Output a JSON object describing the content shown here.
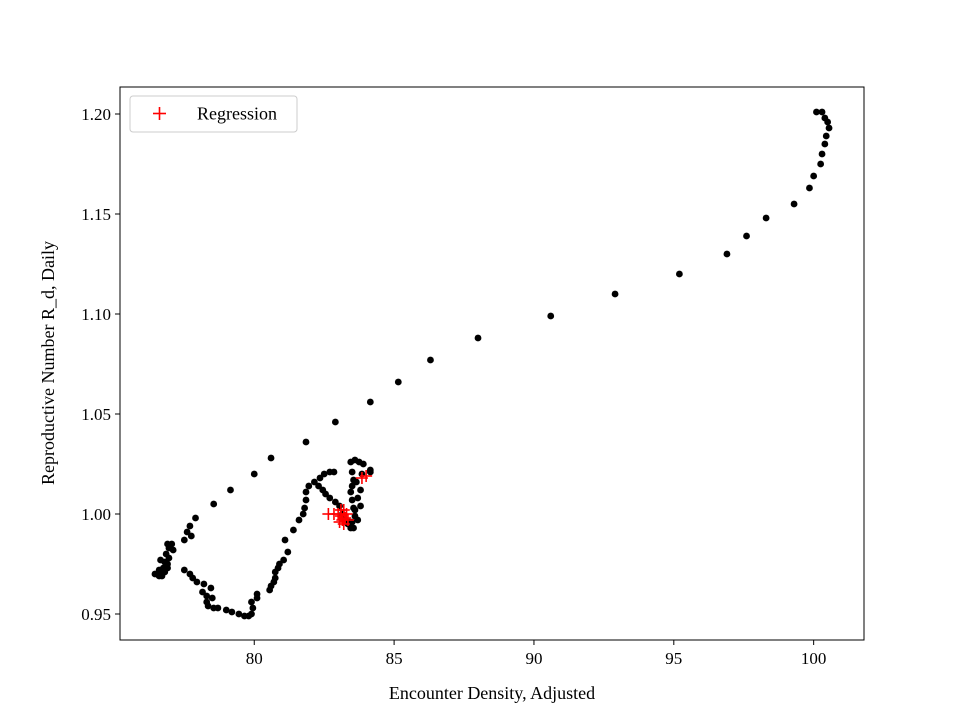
{
  "chart_data": {
    "type": "scatter",
    "title": "",
    "xlabel": "Encounter Density, Adjusted",
    "ylabel": "Reproductive Number R_d, Daily",
    "xlim": [
      75.2,
      101.8
    ],
    "ylim": [
      0.937,
      1.2135
    ],
    "xticks": [
      80,
      85,
      90,
      95,
      100
    ],
    "xtick_labels": [
      "80",
      "85",
      "90",
      "95",
      "100"
    ],
    "yticks": [
      0.95,
      1.0,
      1.05,
      1.1,
      1.15,
      1.2
    ],
    "ytick_labels": [
      "0.95",
      "1.00",
      "1.05",
      "1.10",
      "1.15",
      "1.20"
    ],
    "grid": false,
    "legend": {
      "position": "top-left",
      "entries": [
        "Regression"
      ]
    },
    "series": [
      {
        "marker": "circle",
        "color": "#000000",
        "points": [
          [
            100.1,
            1.201
          ],
          [
            100.3,
            1.201
          ],
          [
            100.4,
            1.198
          ],
          [
            100.5,
            1.196
          ],
          [
            100.55,
            1.193
          ],
          [
            100.45,
            1.189
          ],
          [
            100.4,
            1.185
          ],
          [
            100.3,
            1.18
          ],
          [
            100.25,
            1.175
          ],
          [
            100.0,
            1.169
          ],
          [
            99.85,
            1.163
          ],
          [
            99.3,
            1.155
          ],
          [
            98.3,
            1.148
          ],
          [
            97.6,
            1.139
          ],
          [
            96.9,
            1.13
          ],
          [
            95.2,
            1.12
          ],
          [
            92.9,
            1.11
          ],
          [
            90.6,
            1.099
          ],
          [
            88.0,
            1.088
          ],
          [
            86.3,
            1.077
          ],
          [
            85.15,
            1.066
          ],
          [
            84.15,
            1.056
          ],
          [
            82.9,
            1.046
          ],
          [
            81.85,
            1.036
          ],
          [
            80.6,
            1.028
          ],
          [
            80.0,
            1.02
          ],
          [
            79.15,
            1.012
          ],
          [
            78.55,
            1.005
          ],
          [
            77.9,
            0.998
          ],
          [
            77.7,
            0.994
          ],
          [
            77.6,
            0.991
          ],
          [
            77.75,
            0.989
          ],
          [
            77.5,
            0.987
          ],
          [
            77.05,
            0.985
          ],
          [
            76.9,
            0.985
          ],
          [
            76.95,
            0.983
          ],
          [
            77.1,
            0.982
          ],
          [
            76.85,
            0.98
          ],
          [
            76.95,
            0.978
          ],
          [
            76.8,
            0.976
          ],
          [
            76.65,
            0.977
          ],
          [
            76.9,
            0.975
          ],
          [
            76.75,
            0.973
          ],
          [
            76.6,
            0.972
          ],
          [
            76.45,
            0.97
          ],
          [
            76.7,
            0.97
          ],
          [
            76.8,
            0.971
          ],
          [
            76.9,
            0.973
          ],
          [
            76.7,
            0.969
          ],
          [
            76.6,
            0.969
          ],
          [
            77.5,
            0.972
          ],
          [
            77.7,
            0.97
          ],
          [
            77.8,
            0.968
          ],
          [
            77.95,
            0.966
          ],
          [
            78.2,
            0.965
          ],
          [
            78.45,
            0.963
          ],
          [
            78.15,
            0.961
          ],
          [
            78.3,
            0.959
          ],
          [
            78.5,
            0.958
          ],
          [
            78.3,
            0.956
          ],
          [
            78.35,
            0.954
          ],
          [
            78.55,
            0.953
          ],
          [
            78.7,
            0.953
          ],
          [
            79.0,
            0.952
          ],
          [
            79.2,
            0.951
          ],
          [
            79.45,
            0.95
          ],
          [
            79.65,
            0.949
          ],
          [
            79.8,
            0.949
          ],
          [
            79.9,
            0.95
          ],
          [
            79.95,
            0.953
          ],
          [
            79.9,
            0.956
          ],
          [
            80.1,
            0.958
          ],
          [
            80.1,
            0.96
          ],
          [
            80.55,
            0.962
          ],
          [
            80.6,
            0.964
          ],
          [
            80.7,
            0.966
          ],
          [
            80.75,
            0.968
          ],
          [
            80.75,
            0.971
          ],
          [
            80.85,
            0.973
          ],
          [
            80.9,
            0.975
          ],
          [
            81.05,
            0.977
          ],
          [
            81.2,
            0.981
          ],
          [
            81.1,
            0.987
          ],
          [
            81.4,
            0.992
          ],
          [
            81.6,
            0.997
          ],
          [
            81.75,
            1.0
          ],
          [
            81.8,
            1.003
          ],
          [
            81.85,
            1.007
          ],
          [
            81.85,
            1.011
          ],
          [
            81.95,
            1.014
          ],
          [
            82.15,
            1.016
          ],
          [
            82.3,
            1.014
          ],
          [
            82.45,
            1.012
          ],
          [
            82.55,
            1.01
          ],
          [
            82.7,
            1.008
          ],
          [
            82.9,
            1.006
          ],
          [
            82.35,
            1.018
          ],
          [
            82.5,
            1.02
          ],
          [
            82.7,
            1.021
          ],
          [
            82.85,
            1.021
          ],
          [
            83.05,
            1.004
          ],
          [
            83.15,
            1.0
          ],
          [
            83.25,
            0.997
          ],
          [
            83.35,
            0.995
          ],
          [
            83.45,
            0.993
          ],
          [
            83.55,
            0.993
          ],
          [
            83.5,
            0.996
          ],
          [
            83.6,
            0.999
          ],
          [
            83.7,
            0.997
          ],
          [
            83.55,
            1.003
          ],
          [
            83.5,
            1.007
          ],
          [
            83.45,
            1.011
          ],
          [
            83.5,
            1.014
          ],
          [
            83.55,
            1.017
          ],
          [
            83.5,
            1.021
          ],
          [
            83.45,
            1.026
          ],
          [
            83.6,
            1.027
          ],
          [
            83.75,
            1.026
          ],
          [
            83.9,
            1.025
          ],
          [
            83.85,
            1.02
          ],
          [
            84.15,
            1.022
          ],
          [
            84.15,
            1.021
          ],
          [
            83.65,
            1.016
          ],
          [
            83.8,
            1.012
          ],
          [
            83.7,
            1.008
          ],
          [
            83.8,
            1.004
          ],
          [
            83.6,
            1.002
          ],
          [
            83.4,
            0.996
          ]
        ]
      },
      {
        "name": "Regression",
        "marker": "plus",
        "color": "#ff0000",
        "points": [
          [
            82.65,
            1.0
          ],
          [
            82.85,
            1.0
          ],
          [
            83.0,
            1.0
          ],
          [
            83.1,
            0.999
          ],
          [
            83.15,
            0.997
          ],
          [
            83.2,
            0.995
          ],
          [
            83.25,
            0.998
          ],
          [
            83.3,
            1.0
          ],
          [
            83.05,
            0.996
          ],
          [
            83.1,
            1.002
          ],
          [
            83.35,
            0.997
          ],
          [
            83.2,
            1.002
          ],
          [
            83.85,
            1.018
          ],
          [
            84.0,
            1.019
          ]
        ]
      }
    ]
  }
}
